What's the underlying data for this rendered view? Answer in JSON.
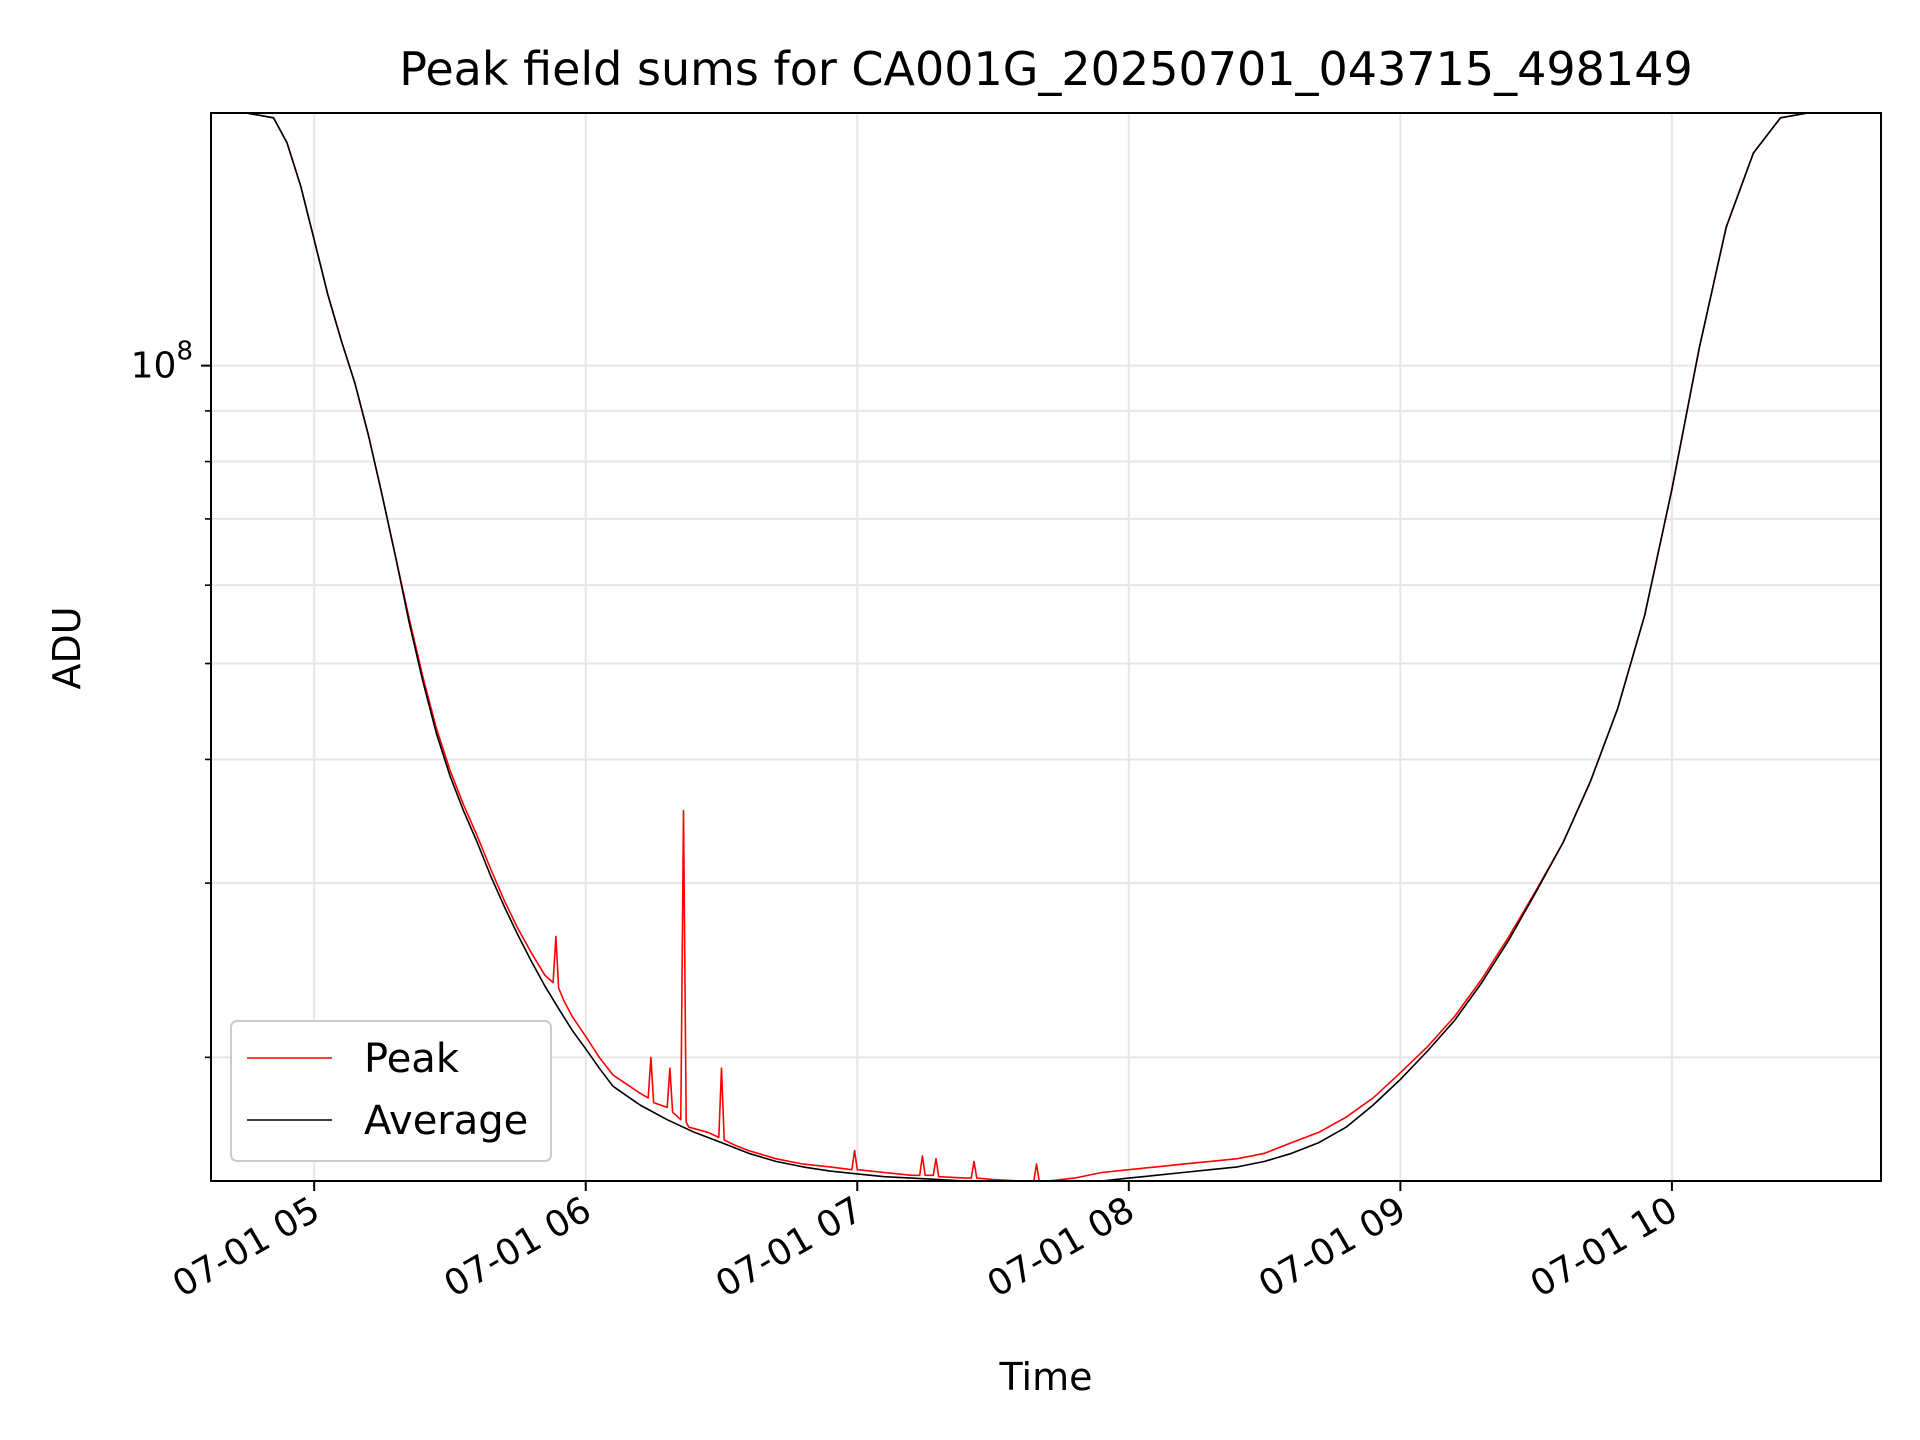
{
  "chart_data": {
    "type": "line",
    "title": "Peak field sums for CA001G_20250701_043715_498149",
    "xlabel": "Time",
    "ylabel": "ADU",
    "x_unit": "hours (time of day, 2025-07-01)",
    "xlim": [
      4.62,
      10.77
    ],
    "ylim": [
      15000000,
      180000000
    ],
    "yscale": "log",
    "grid": true,
    "legend": {
      "position": "lower-left"
    },
    "x_ticks": [
      {
        "value": 5,
        "label": "07-01 05"
      },
      {
        "value": 6,
        "label": "07-01 06"
      },
      {
        "value": 7,
        "label": "07-01 07"
      },
      {
        "value": 8,
        "label": "07-01 08"
      },
      {
        "value": 9,
        "label": "07-01 09"
      },
      {
        "value": 10,
        "label": "07-01 10"
      }
    ],
    "y_ticks": [
      {
        "value": 100000000,
        "base": "10",
        "exp": "8"
      }
    ],
    "y_minor_ticks": [
      20000000,
      30000000,
      40000000,
      50000000,
      60000000,
      70000000,
      80000000,
      90000000
    ],
    "series": [
      {
        "name": "Peak",
        "color": "#ff0000",
        "x": [
          4.62,
          4.75,
          4.85,
          4.9,
          4.95,
          5.0,
          5.05,
          5.1,
          5.15,
          5.2,
          5.25,
          5.3,
          5.35,
          5.4,
          5.45,
          5.5,
          5.55,
          5.6,
          5.65,
          5.7,
          5.75,
          5.8,
          5.85,
          5.88,
          5.89,
          5.9,
          5.92,
          5.95,
          6.0,
          6.05,
          6.1,
          6.2,
          6.23,
          6.24,
          6.25,
          6.3,
          6.31,
          6.32,
          6.33,
          6.35,
          6.36,
          6.37,
          6.38,
          6.45,
          6.49,
          6.5,
          6.51,
          6.55,
          6.6,
          6.7,
          6.8,
          6.9,
          6.98,
          6.99,
          7.0,
          7.1,
          7.2,
          7.23,
          7.24,
          7.25,
          7.28,
          7.29,
          7.3,
          7.4,
          7.42,
          7.43,
          7.44,
          7.5,
          7.6,
          7.65,
          7.66,
          7.67,
          7.7,
          7.8,
          7.9,
          8.0,
          8.1,
          8.2,
          8.3,
          8.4,
          8.5,
          8.6,
          8.7,
          8.8,
          8.9,
          9.0,
          9.1,
          9.2,
          9.3,
          9.4,
          9.5,
          9.6,
          9.7,
          9.8,
          9.9,
          10.0,
          10.1,
          10.2,
          10.3,
          10.4,
          10.5,
          10.77
        ],
        "y": [
          180000000,
          180000000,
          178000000,
          168000000,
          152000000,
          134000000,
          118000000,
          106000000,
          96000000,
          85000000,
          74000000,
          64000000,
          55500000,
          48500000,
          43000000,
          39000000,
          36000000,
          33500000,
          31000000,
          28800000,
          27000000,
          25500000,
          24200000,
          23800000,
          26500000,
          23500000,
          22800000,
          22000000,
          21000000,
          20000000,
          19200000,
          18400000,
          18200000,
          20000000,
          18000000,
          17800000,
          19500000,
          17600000,
          17500000,
          17300000,
          35500000,
          17200000,
          17000000,
          16800000,
          16600000,
          19500000,
          16500000,
          16300000,
          16100000,
          15800000,
          15600000,
          15500000,
          15400000,
          16100000,
          15400000,
          15300000,
          15200000,
          15200000,
          15900000,
          15200000,
          15200000,
          15800000,
          15150000,
          15100000,
          15100000,
          15700000,
          15100000,
          15050000,
          15000000,
          15000000,
          15600000,
          15000000,
          15000000,
          15100000,
          15300000,
          15400000,
          15500000,
          15600000,
          15700000,
          15800000,
          16000000,
          16400000,
          16800000,
          17400000,
          18200000,
          19300000,
          20500000,
          22000000,
          24000000,
          26500000,
          29500000,
          33000000,
          38000000,
          45000000,
          56000000,
          75000000,
          104000000,
          138000000,
          164000000,
          178000000,
          180000000,
          180000000
        ]
      },
      {
        "name": "Average",
        "color": "#000000",
        "x": [
          4.62,
          4.75,
          4.85,
          4.9,
          4.95,
          5.0,
          5.05,
          5.1,
          5.15,
          5.2,
          5.25,
          5.3,
          5.35,
          5.4,
          5.45,
          5.5,
          5.55,
          5.6,
          5.65,
          5.7,
          5.75,
          5.8,
          5.85,
          5.9,
          5.95,
          6.0,
          6.05,
          6.1,
          6.2,
          6.3,
          6.4,
          6.5,
          6.6,
          6.7,
          6.8,
          6.9,
          7.0,
          7.1,
          7.2,
          7.3,
          7.4,
          7.5,
          7.6,
          7.7,
          7.8,
          7.9,
          8.0,
          8.1,
          8.2,
          8.3,
          8.4,
          8.5,
          8.6,
          8.7,
          8.8,
          8.9,
          9.0,
          9.1,
          9.2,
          9.3,
          9.4,
          9.5,
          9.6,
          9.7,
          9.8,
          9.9,
          10.0,
          10.1,
          10.2,
          10.3,
          10.4,
          10.5,
          10.77
        ],
        "y": [
          180000000,
          180000000,
          178000000,
          168000000,
          152000000,
          134000000,
          118000000,
          106000000,
          96000000,
          85000000,
          74000000,
          64000000,
          55000000,
          48000000,
          42500000,
          38500000,
          35500000,
          33000000,
          30500000,
          28400000,
          26600000,
          25000000,
          23600000,
          22400000,
          21300000,
          20400000,
          19500000,
          18700000,
          17900000,
          17300000,
          16800000,
          16400000,
          16000000,
          15700000,
          15500000,
          15350000,
          15250000,
          15150000,
          15100000,
          15050000,
          15000000,
          14950000,
          14900000,
          14900000,
          14950000,
          15000000,
          15100000,
          15200000,
          15300000,
          15400000,
          15500000,
          15700000,
          16000000,
          16400000,
          17000000,
          17900000,
          19000000,
          20300000,
          21800000,
          23800000,
          26300000,
          29400000,
          33000000,
          38000000,
          45000000,
          56000000,
          75000000,
          104000000,
          138000000,
          164000000,
          178000000,
          180000000,
          180000000
        ]
      }
    ]
  }
}
